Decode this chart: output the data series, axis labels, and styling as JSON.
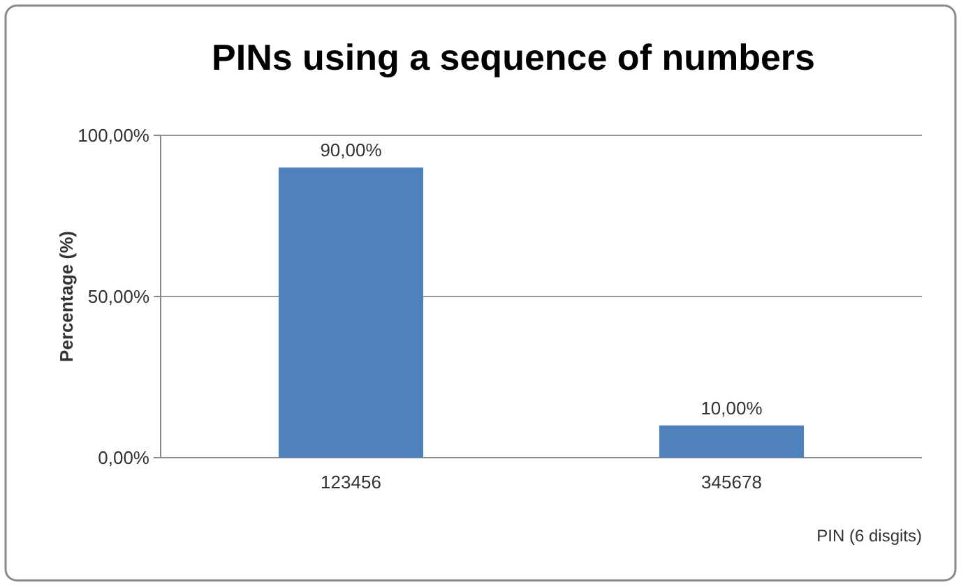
{
  "chart_data": {
    "type": "bar",
    "title": "PINs using a sequence of numbers",
    "xlabel": "PIN (6 disgits)",
    "ylabel": "Percentage (%)",
    "categories": [
      "123456",
      "345678"
    ],
    "values": [
      90,
      10
    ],
    "value_labels": [
      "90,00%",
      "10,00%"
    ],
    "color": "#4f81bd",
    "ylim": [
      0,
      100
    ],
    "yticks": [
      {
        "value": 0,
        "label": "0,00%"
      },
      {
        "value": 50,
        "label": "50,00%"
      },
      {
        "value": 100,
        "label": "100,00%"
      }
    ],
    "grid": "y"
  }
}
